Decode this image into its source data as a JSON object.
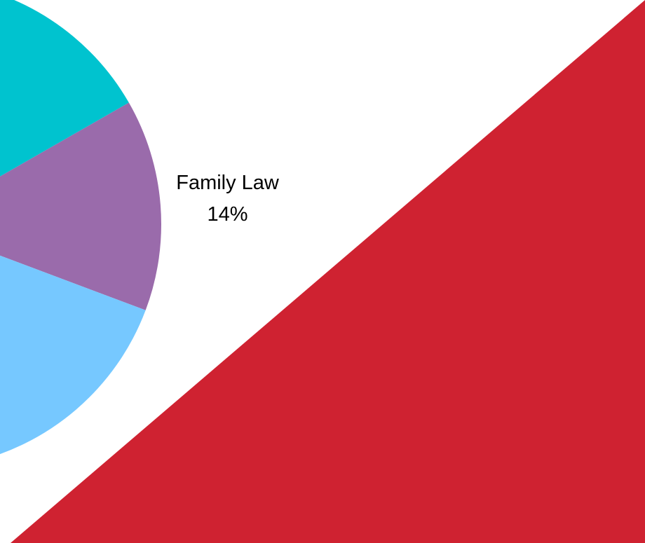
{
  "chart_data": {
    "type": "pie",
    "categories": [
      null,
      "Family Law",
      null
    ],
    "values": [
      15,
      14,
      16
    ],
    "value_labels": [
      null,
      "14%",
      null
    ],
    "colors": [
      "#00c3cf",
      "#9a6bab",
      "#76c8ff"
    ]
  }
}
